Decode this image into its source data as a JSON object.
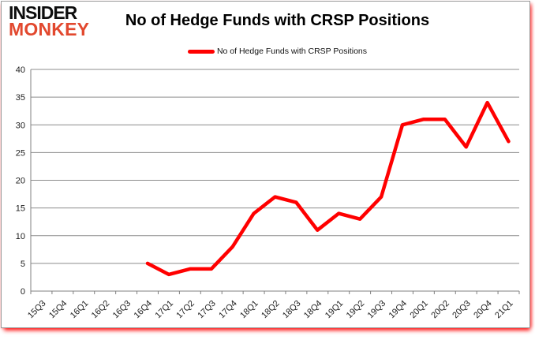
{
  "frame": {
    "background": "#ffffff",
    "border_color": "#9a9a9a",
    "shadow_color": "#ff0000"
  },
  "logo": {
    "line1": "INSIDER",
    "line2": "MONKEY",
    "line1_color": "#0d0d0d",
    "line2_color": "#e2482e"
  },
  "header": {
    "title": "No of Hedge Funds with CRSP Positions"
  },
  "legend": {
    "label": "No of Hedge Funds with CRSP Positions",
    "marker_color": "#ff0000"
  },
  "chart_data": {
    "type": "line",
    "title": "No of Hedge Funds with CRSP Positions",
    "categories": [
      "15Q3",
      "15Q4",
      "16Q1",
      "16Q2",
      "16Q3",
      "16Q4",
      "17Q1",
      "17Q2",
      "17Q3",
      "17Q4",
      "18Q1",
      "18Q2",
      "18Q3",
      "18Q4",
      "19Q1",
      "19Q2",
      "19Q3",
      "19Q4",
      "20Q1",
      "20Q2",
      "20Q3",
      "20Q4",
      "21Q1"
    ],
    "series": [
      {
        "name": "No of Hedge Funds with CRSP Positions",
        "color": "#ff0000",
        "values": [
          null,
          null,
          null,
          null,
          null,
          5,
          3,
          4,
          4,
          8,
          14,
          17,
          16,
          11,
          14,
          13,
          17,
          30,
          31,
          31,
          26,
          34,
          27
        ]
      }
    ],
    "xlabel": "",
    "ylabel": "",
    "ylim": [
      0,
      40
    ],
    "ytick_step": 5,
    "grid": "horizontal",
    "legend_position": "top",
    "gridline_color": "#8c8c8c",
    "axis_color": "#808080",
    "tick_label_color": "#1c1c1c",
    "tick_label_font_size": 11
  }
}
